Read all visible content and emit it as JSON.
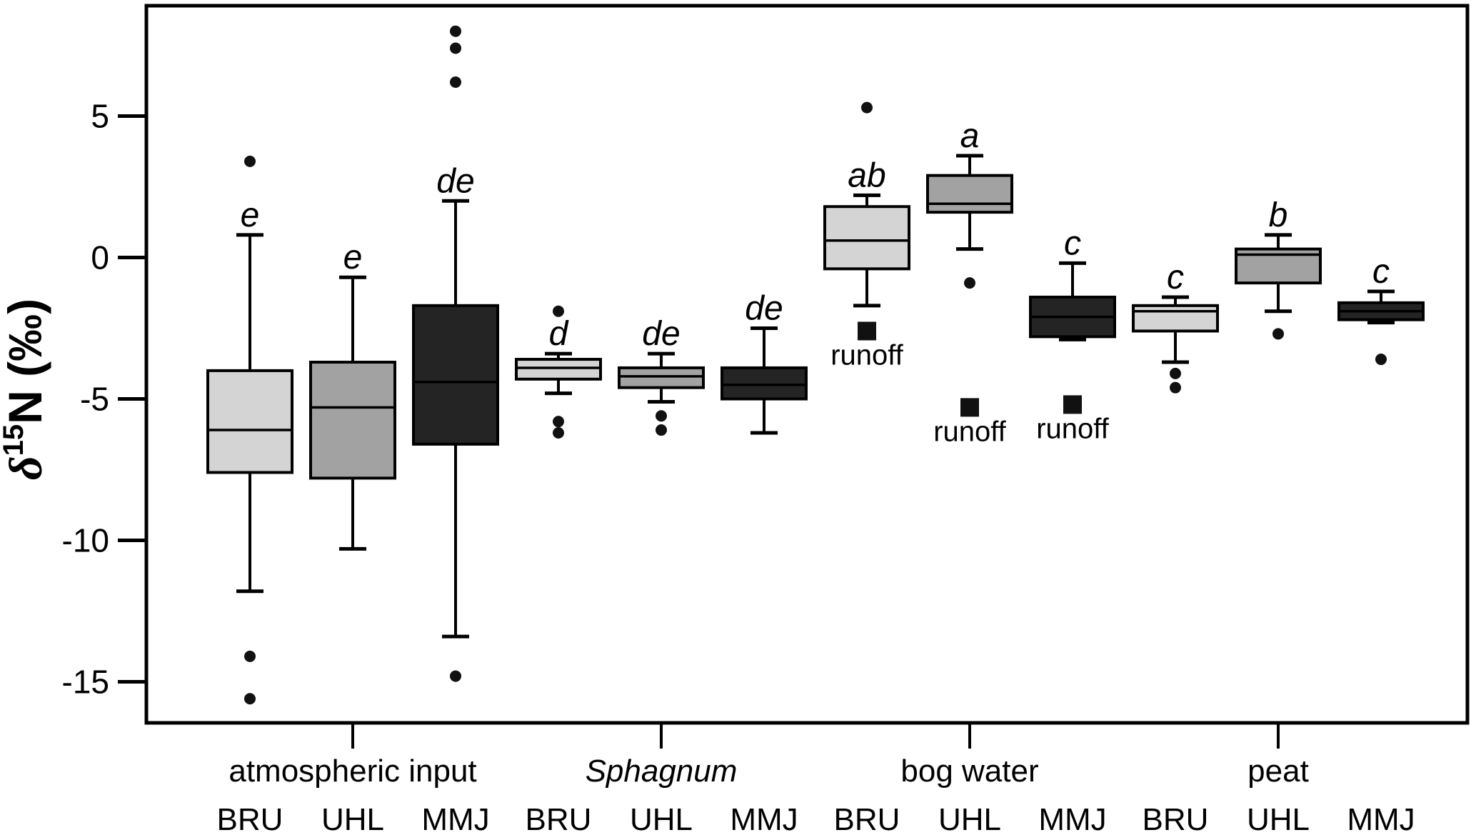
{
  "y_axis": {
    "title": "δ15N (‰)",
    "title_parts": {
      "symbol": "δ",
      "superscript": "15",
      "rest": "N (‰)"
    },
    "ticks": [
      {
        "value": 5,
        "label": "5"
      },
      {
        "value": 0,
        "label": "0"
      },
      {
        "value": -5,
        "label": "-5"
      },
      {
        "value": -10,
        "label": "-10"
      },
      {
        "value": -15,
        "label": "-15"
      }
    ]
  },
  "chart_data": {
    "type": "boxplot",
    "title": "",
    "xlabel": "",
    "ylabel": "δ15N (‰)",
    "ylim": [
      -16.4,
      8.9
    ],
    "grid": false,
    "legend": "none",
    "sites": [
      "BRU",
      "UHL",
      "MMJ"
    ],
    "site_colors": {
      "BRU": "#d4d4d4",
      "UHL": "#a2a2a2",
      "MMJ": "#242424"
    },
    "stroke_color": "#000000",
    "groups": [
      {
        "label": "atmospheric input",
        "italic": false
      },
      {
        "label": "Sphagnum",
        "italic": true
      },
      {
        "label": "bog water",
        "italic": false
      },
      {
        "label": "peat",
        "italic": false
      }
    ],
    "boxes": [
      {
        "group": 0,
        "site": "BRU",
        "letter": "e",
        "whisker_low": -11.8,
        "q1": -7.6,
        "median": -6.1,
        "q3": -4.0,
        "whisker_high": 0.8,
        "outliers_above": [
          3.4
        ],
        "outliers_below": [
          -14.1,
          -15.6
        ]
      },
      {
        "group": 0,
        "site": "UHL",
        "letter": "e",
        "whisker_low": -10.3,
        "q1": -7.8,
        "median": -5.3,
        "q3": -3.7,
        "whisker_high": -0.7,
        "outliers_above": [],
        "outliers_below": []
      },
      {
        "group": 0,
        "site": "MMJ",
        "letter": "de",
        "whisker_low": -13.4,
        "q1": -6.6,
        "median": -4.4,
        "q3": -1.7,
        "whisker_high": 2.0,
        "outliers_above": [
          8.0,
          7.4,
          6.2
        ],
        "outliers_below": [
          -14.8
        ]
      },
      {
        "group": 1,
        "site": "BRU",
        "letter": "d",
        "whisker_low": -4.8,
        "q1": -4.3,
        "median": -3.9,
        "q3": -3.6,
        "whisker_high": -3.4,
        "outliers_above": [
          -1.9
        ],
        "outliers_below": [
          -5.8,
          -6.2
        ]
      },
      {
        "group": 1,
        "site": "UHL",
        "letter": "de",
        "whisker_low": -5.1,
        "q1": -4.6,
        "median": -4.2,
        "q3": -3.9,
        "whisker_high": -3.4,
        "outliers_above": [],
        "outliers_below": [
          -5.6,
          -6.1
        ]
      },
      {
        "group": 1,
        "site": "MMJ",
        "letter": "de",
        "whisker_low": -6.2,
        "q1": -5.0,
        "median": -4.5,
        "q3": -3.9,
        "whisker_high": -2.5,
        "outliers_above": [],
        "outliers_below": []
      },
      {
        "group": 2,
        "site": "BRU",
        "letter": "ab",
        "whisker_low": -1.7,
        "q1": -0.4,
        "median": 0.6,
        "q3": 1.8,
        "whisker_high": 2.2,
        "outliers_above": [
          5.3
        ],
        "outliers_below": []
      },
      {
        "group": 2,
        "site": "UHL",
        "letter": "a",
        "whisker_low": 0.3,
        "q1": 1.6,
        "median": 1.9,
        "q3": 2.9,
        "whisker_high": 3.6,
        "outliers_above": [],
        "outliers_below": [
          -0.9
        ]
      },
      {
        "group": 2,
        "site": "MMJ",
        "letter": "c",
        "whisker_low": -2.9,
        "q1": -2.8,
        "median": -2.1,
        "q3": -1.4,
        "whisker_high": -0.2,
        "outliers_above": [],
        "outliers_below": []
      },
      {
        "group": 3,
        "site": "BRU",
        "letter": "c",
        "whisker_low": -3.7,
        "q1": -2.6,
        "median": -1.9,
        "q3": -1.7,
        "whisker_high": -1.4,
        "outliers_above": [],
        "outliers_below": [
          -4.1,
          -4.6
        ]
      },
      {
        "group": 3,
        "site": "UHL",
        "letter": "b",
        "whisker_low": -1.9,
        "q1": -0.9,
        "median": 0.1,
        "q3": 0.3,
        "whisker_high": 0.8,
        "outliers_above": [],
        "outliers_below": [
          -2.7
        ]
      },
      {
        "group": 3,
        "site": "MMJ",
        "letter": "c",
        "whisker_low": -2.3,
        "q1": -2.2,
        "median": -1.9,
        "q3": -1.6,
        "whisker_high": -1.2,
        "outliers_above": [],
        "outliers_below": [
          -3.6
        ]
      }
    ],
    "runoff_points": [
      {
        "group": 2,
        "site": "BRU",
        "label": "runoff",
        "value": -2.6
      },
      {
        "group": 2,
        "site": "UHL",
        "label": "runoff",
        "value": -5.3
      },
      {
        "group": 2,
        "site": "MMJ",
        "label": "runoff",
        "value": -5.2
      }
    ]
  }
}
